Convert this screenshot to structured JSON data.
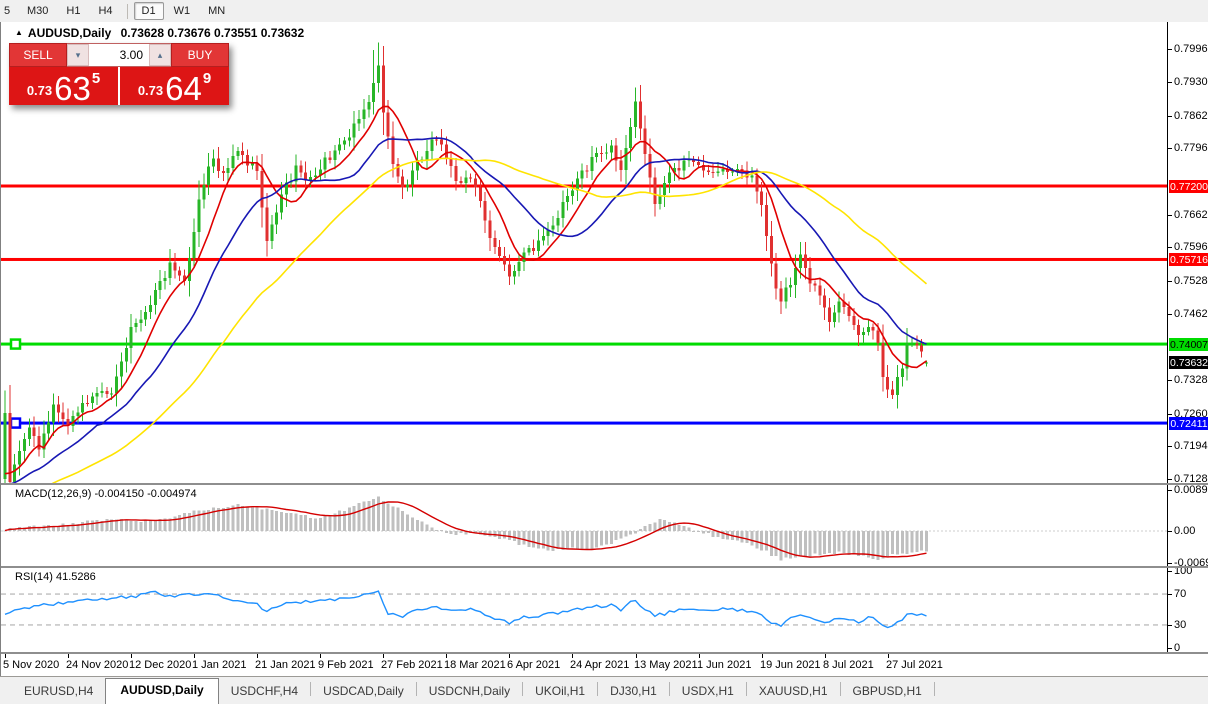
{
  "window": {
    "symbol": "AUDUSD,Daily",
    "ohlc": "0.73628 0.73676 0.73551 0.73632",
    "collapse_icon": "▲"
  },
  "toolbar": {
    "timeframes": [
      {
        "label": "5",
        "active": false,
        "partial": true
      },
      {
        "label": "M30",
        "active": false
      },
      {
        "label": "H1",
        "active": false
      },
      {
        "label": "H4",
        "active": false
      },
      {
        "label": "D1",
        "active": true
      },
      {
        "label": "W1",
        "active": false
      },
      {
        "label": "MN",
        "active": false
      }
    ]
  },
  "trade_panel": {
    "sell_label": "SELL",
    "buy_label": "BUY",
    "volume": "3.00",
    "sell": {
      "prefix": "0.73",
      "big": "63",
      "sup": "5"
    },
    "buy": {
      "prefix": "0.73",
      "big": "64",
      "sup": "9"
    }
  },
  "price_axis": {
    "grid": [
      {
        "text": "0.79960",
        "value": 0.7996
      },
      {
        "text": "0.79300",
        "value": 0.793
      },
      {
        "text": "0.78620",
        "value": 0.7862
      },
      {
        "text": "0.77960",
        "value": 0.7796
      },
      {
        "text": "0.76620",
        "value": 0.7662
      },
      {
        "text": "0.75960",
        "value": 0.7596
      },
      {
        "text": "0.75280",
        "value": 0.7528
      },
      {
        "text": "0.74620",
        "value": 0.7462
      },
      {
        "text": "0.73280",
        "value": 0.7328
      },
      {
        "text": "0.72600",
        "value": 0.726
      },
      {
        "text": "0.71940",
        "value": 0.7194
      },
      {
        "text": "0.71280",
        "value": 0.7128
      }
    ],
    "badges": [
      {
        "text": "0.77200",
        "value": 0.772,
        "bg": "#ff0000",
        "fg": "#ffffff"
      },
      {
        "text": "0.75716",
        "value": 0.75716,
        "bg": "#ff0000",
        "fg": "#ffffff"
      },
      {
        "text": "0.74007",
        "value": 0.74007,
        "bg": "#00dc00",
        "fg": "#000000"
      },
      {
        "text": "0.73632",
        "value": 0.73632,
        "bg": "#000000",
        "fg": "#ffffff"
      },
      {
        "text": "0.72411",
        "value": 0.72411,
        "bg": "#0000ff",
        "fg": "#ffffff"
      }
    ]
  },
  "levels": [
    {
      "value": 0.772,
      "color": "#ff0000",
      "thickness": 3,
      "handle": false
    },
    {
      "value": 0.75716,
      "color": "#ff0000",
      "thickness": 3,
      "handle": false
    },
    {
      "value": 0.74007,
      "color": "#00dc00",
      "thickness": 3,
      "handle": true
    },
    {
      "value": 0.72411,
      "color": "#0000ff",
      "thickness": 3,
      "handle": true
    }
  ],
  "macd_panel": {
    "label": "MACD(12,26,9) -0.004150 -0.004974",
    "axis": [
      {
        "text": "0.008903",
        "value": 0.008903
      },
      {
        "text": "0.00",
        "value": 0
      },
      {
        "text": "-0.00697",
        "value": -0.00697
      }
    ]
  },
  "rsi_panel": {
    "label": "RSI(14) 41.5286",
    "axis": [
      {
        "text": "100",
        "value": 100
      },
      {
        "text": "70",
        "value": 70
      },
      {
        "text": "30",
        "value": 30
      },
      {
        "text": "0",
        "value": 0
      }
    ],
    "guide_levels": [
      70,
      30
    ]
  },
  "date_axis": {
    "labels": [
      "5 Nov 2020",
      "24 Nov 2020",
      "12 Dec 2020",
      "1 Jan 2021",
      "21 Jan 2021",
      "9 Feb 2021",
      "27 Feb 2021",
      "18 Mar 2021",
      "6 Apr 2021",
      "24 Apr 2021",
      "13 May 2021",
      "1 Jun 2021",
      "19 Jun 2021",
      "8 Jul 2021",
      "27 Jul 2021"
    ]
  },
  "tabs": {
    "items": [
      {
        "label": "EURUSD,H4",
        "active": false
      },
      {
        "label": "AUDUSD,Daily",
        "active": true
      },
      {
        "label": "USDCHF,H4",
        "active": false
      },
      {
        "label": "USDCAD,Daily",
        "active": false
      },
      {
        "label": "USDCNH,Daily",
        "active": false
      },
      {
        "label": "UKOil,H1",
        "active": false
      },
      {
        "label": "DJ30,H1",
        "active": false
      },
      {
        "label": "USDX,H1",
        "active": false
      },
      {
        "label": "XAUUSD,H1",
        "active": false
      },
      {
        "label": "GBPUSD,H1",
        "active": false
      }
    ]
  },
  "colors": {
    "up_candle": "#28b628",
    "down_candle": "#e03030",
    "ma_fast": "#e00000",
    "ma_mid": "#1818b4",
    "ma_slow": "#ffe400",
    "histogram": "#bfbfbf",
    "signal": "#d40000",
    "rsi_line": "#1e90ff",
    "guide_dash": "#bdbdbd",
    "zero_dot": "#cccccc"
  },
  "chart_data": {
    "type": "candlestick",
    "symbol": "AUDUSD",
    "timeframe": "Daily",
    "title": "AUDUSD,Daily 0.73628 0.73676 0.73551 0.73632",
    "current_ohlc": {
      "open": 0.73628,
      "high": 0.73676,
      "low": 0.73551,
      "close": 0.73632
    },
    "bars": 191,
    "bars_per_date_tick": 13,
    "x_labels": [
      "5 Nov 2020",
      "24 Nov 2020",
      "12 Dec 2020",
      "1 Jan 2021",
      "21 Jan 2021",
      "9 Feb 2021",
      "27 Feb 2021",
      "18 Mar 2021",
      "6 Apr 2021",
      "24 Apr 2021",
      "13 May 2021",
      "1 Jun 2021",
      "19 Jun 2021",
      "8 Jul 2021",
      "27 Jul 2021"
    ],
    "y_range": [
      0.7128,
      0.7996
    ],
    "horizontal_lines": [
      0.772,
      0.75716,
      0.74007,
      0.72411
    ],
    "current_price": 0.73632,
    "moving_average_periods": {
      "fast": 8,
      "mid": 20,
      "slow": 45
    },
    "price_anchors": [
      [
        0,
        0.726
      ],
      [
        1,
        0.7128
      ],
      [
        3,
        0.718
      ],
      [
        5,
        0.723
      ],
      [
        7,
        0.7195
      ],
      [
        10,
        0.7268
      ],
      [
        13,
        0.7245
      ],
      [
        18,
        0.73
      ],
      [
        22,
        0.731
      ],
      [
        26,
        0.743
      ],
      [
        30,
        0.748
      ],
      [
        34,
        0.756
      ],
      [
        37,
        0.753
      ],
      [
        40,
        0.769
      ],
      [
        43,
        0.778
      ],
      [
        45,
        0.774
      ],
      [
        48,
        0.779
      ],
      [
        52,
        0.775
      ],
      [
        54,
        0.762
      ],
      [
        57,
        0.77
      ],
      [
        60,
        0.7755
      ],
      [
        63,
        0.773
      ],
      [
        66,
        0.777
      ],
      [
        69,
        0.7805
      ],
      [
        72,
        0.784
      ],
      [
        75,
        0.79
      ],
      [
        77,
        0.796
      ],
      [
        78,
        0.787
      ],
      [
        80,
        0.776
      ],
      [
        82,
        0.771
      ],
      [
        86,
        0.778
      ],
      [
        89,
        0.7815
      ],
      [
        91,
        0.778
      ],
      [
        93,
        0.772
      ],
      [
        96,
        0.7745
      ],
      [
        99,
        0.765
      ],
      [
        102,
        0.757
      ],
      [
        104,
        0.7532
      ],
      [
        107,
        0.7585
      ],
      [
        110,
        0.76
      ],
      [
        113,
        0.764
      ],
      [
        116,
        0.77
      ],
      [
        119,
        0.7745
      ],
      [
        122,
        0.7785
      ],
      [
        125,
        0.78
      ],
      [
        127,
        0.776
      ],
      [
        129,
        0.783
      ],
      [
        130,
        0.7885
      ],
      [
        132,
        0.779
      ],
      [
        134,
        0.769
      ],
      [
        136,
        0.773
      ],
      [
        139,
        0.776
      ],
      [
        142,
        0.7775
      ],
      [
        145,
        0.774
      ],
      [
        148,
        0.7755
      ],
      [
        151,
        0.7745
      ],
      [
        154,
        0.7735
      ],
      [
        156,
        0.769
      ],
      [
        158,
        0.756
      ],
      [
        160,
        0.748
      ],
      [
        162,
        0.753
      ],
      [
        164,
        0.758
      ],
      [
        166,
        0.753
      ],
      [
        168,
        0.749
      ],
      [
        170,
        0.7445
      ],
      [
        172,
        0.7485
      ],
      [
        174,
        0.7455
      ],
      [
        176,
        0.7415
      ],
      [
        178,
        0.744
      ],
      [
        180,
        0.7395
      ],
      [
        181,
        0.733
      ],
      [
        183,
        0.729
      ],
      [
        184,
        0.733
      ],
      [
        186,
        0.7395
      ],
      [
        188,
        0.74
      ],
      [
        190,
        0.73632
      ]
    ],
    "wick_spikes": [
      [
        76,
        0.7995
      ],
      [
        77,
        0.801
      ],
      [
        130,
        0.7893
      ]
    ],
    "macd": {
      "params": "12,26,9",
      "value_main": -0.00415,
      "value_signal": -0.004974,
      "axis_range": [
        -0.00697,
        0.008903
      ],
      "anchors": [
        [
          0,
          0.0004
        ],
        [
          6,
          0.0009
        ],
        [
          12,
          0.0013
        ],
        [
          18,
          0.0022
        ],
        [
          24,
          0.0028
        ],
        [
          28,
          0.0018
        ],
        [
          32,
          0.0025
        ],
        [
          40,
          0.0045
        ],
        [
          48,
          0.0056
        ],
        [
          57,
          0.0044
        ],
        [
          61,
          0.0034
        ],
        [
          65,
          0.0028
        ],
        [
          69,
          0.0042
        ],
        [
          73,
          0.006
        ],
        [
          77,
          0.0073
        ],
        [
          79,
          0.0062
        ],
        [
          84,
          0.003
        ],
        [
          88,
          0.0006
        ],
        [
          92,
          -0.0008
        ],
        [
          96,
          -0.0006
        ],
        [
          100,
          -0.0012
        ],
        [
          104,
          -0.002
        ],
        [
          108,
          -0.0035
        ],
        [
          112,
          -0.0042
        ],
        [
          117,
          -0.0038
        ],
        [
          121,
          -0.004
        ],
        [
          125,
          -0.0026
        ],
        [
          129,
          -0.0008
        ],
        [
          132,
          0.001
        ],
        [
          135,
          0.0026
        ],
        [
          138,
          0.0018
        ],
        [
          141,
          0.0006
        ],
        [
          144,
          -0.0005
        ],
        [
          147,
          -0.0012
        ],
        [
          152,
          -0.0022
        ],
        [
          156,
          -0.004
        ],
        [
          160,
          -0.0062
        ],
        [
          164,
          -0.0056
        ],
        [
          168,
          -0.005
        ],
        [
          172,
          -0.0047
        ],
        [
          176,
          -0.0054
        ],
        [
          180,
          -0.006
        ],
        [
          184,
          -0.005
        ],
        [
          187,
          -0.0046
        ],
        [
          190,
          -0.00415
        ]
      ]
    },
    "rsi": {
      "period": 14,
      "value": 41.5286,
      "levels": [
        70,
        30
      ],
      "axis_range": [
        0,
        100
      ],
      "anchors": [
        [
          0,
          46
        ],
        [
          4,
          52
        ],
        [
          8,
          56
        ],
        [
          14,
          60
        ],
        [
          20,
          64
        ],
        [
          26,
          66
        ],
        [
          30,
          73
        ],
        [
          34,
          68
        ],
        [
          38,
          70
        ],
        [
          43,
          69
        ],
        [
          47,
          62
        ],
        [
          52,
          56
        ],
        [
          54,
          48
        ],
        [
          58,
          58
        ],
        [
          62,
          60
        ],
        [
          66,
          62
        ],
        [
          70,
          65
        ],
        [
          74,
          68
        ],
        [
          77,
          74
        ],
        [
          79,
          46
        ],
        [
          82,
          42
        ],
        [
          86,
          50
        ],
        [
          89,
          54
        ],
        [
          92,
          48
        ],
        [
          96,
          52
        ],
        [
          99,
          42
        ],
        [
          102,
          36
        ],
        [
          104,
          32
        ],
        [
          107,
          40
        ],
        [
          110,
          42
        ],
        [
          114,
          45
        ],
        [
          118,
          50
        ],
        [
          122,
          54
        ],
        [
          125,
          56
        ],
        [
          127,
          50
        ],
        [
          130,
          63
        ],
        [
          132,
          50
        ],
        [
          134,
          42
        ],
        [
          137,
          46
        ],
        [
          140,
          52
        ],
        [
          143,
          50
        ],
        [
          146,
          47
        ],
        [
          149,
          52
        ],
        [
          152,
          49
        ],
        [
          155,
          45
        ],
        [
          158,
          34
        ],
        [
          160,
          30
        ],
        [
          162,
          40
        ],
        [
          164,
          43
        ],
        [
          167,
          37
        ],
        [
          170,
          33
        ],
        [
          172,
          40
        ],
        [
          174,
          36
        ],
        [
          176,
          34
        ],
        [
          178,
          40
        ],
        [
          180,
          35
        ],
        [
          182,
          28
        ],
        [
          183,
          27
        ],
        [
          184,
          33
        ],
        [
          186,
          42
        ],
        [
          188,
          44
        ],
        [
          190,
          41.5
        ]
      ]
    }
  }
}
